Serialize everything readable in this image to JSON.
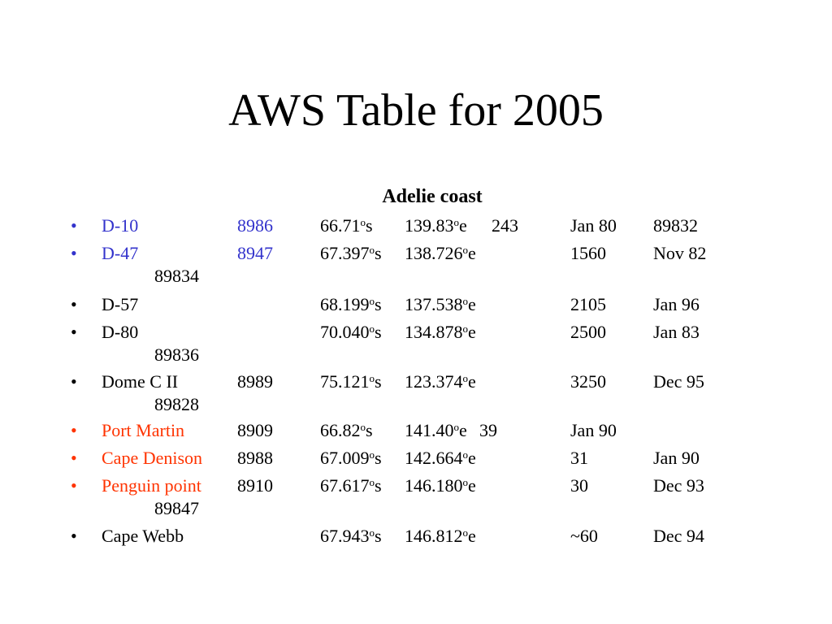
{
  "title": "AWS Table for 2005",
  "subtitle": "Adelie coast",
  "degree_mark": "o",
  "colors": {
    "blue": "#3333cc",
    "red": "#ff3300",
    "black": "#000000"
  },
  "rows": [
    {
      "color": "blue",
      "bullet": "•",
      "name": "D-10",
      "id": "8986",
      "lat": "66.71",
      "lat_dir": "s",
      "lon": "139.83",
      "lon_dir": "e",
      "elev": "243",
      "date": "Jan 80",
      "wmo": "89832"
    },
    {
      "color": "blue",
      "bullet": "•",
      "name": "D-47",
      "id": "8947",
      "lat": "67.397",
      "lat_dir": "s",
      "lon": "138.726",
      "lon_dir": "e",
      "elev": "1560",
      "date": "Nov 82",
      "wmo": "89834"
    },
    {
      "color": "black",
      "bullet": "•",
      "name": "D-57",
      "id": "",
      "lat": "68.199",
      "lat_dir": "s",
      "lon": "137.538",
      "lon_dir": "e",
      "elev": "2105",
      "date": "Jan 96",
      "wmo": ""
    },
    {
      "color": "black",
      "bullet": "•",
      "name": "D-80",
      "id": "",
      "lat": "70.040",
      "lat_dir": "s",
      "lon": "134.878",
      "lon_dir": "e",
      "elev": "2500",
      "date": "Jan 83",
      "wmo": "89836"
    },
    {
      "color": "black",
      "bullet": "•",
      "name": "Dome C II",
      "id": "8989",
      "lat": "75.121",
      "lat_dir": "s",
      "lon": "123.374",
      "lon_dir": "e",
      "elev": "3250",
      "date": "Dec 95",
      "wmo": "89828"
    },
    {
      "color": "red",
      "bullet": "•",
      "name": "Port Martin",
      "id": "8909",
      "lat": "66.82",
      "lat_dir": "s",
      "lon": "141.40",
      "lon_dir": "e",
      "elev": "39",
      "date": "Jan 90",
      "wmo": ""
    },
    {
      "color": "red",
      "bullet": "•",
      "name": "Cape Denison",
      "id": "8988",
      "lat": "67.009",
      "lat_dir": "s",
      "lon": "142.664",
      "lon_dir": "e",
      "elev": "31",
      "date": "Jan 90",
      "wmo": ""
    },
    {
      "color": "red",
      "bullet": "•",
      "name": "Penguin point",
      "id": "8910",
      "lat": "67.617",
      "lat_dir": "s",
      "lon": "146.180",
      "lon_dir": "e",
      "elev": "30",
      "date": "Dec 93",
      "wmo": "89847"
    },
    {
      "color": "black",
      "bullet": "•",
      "name": "Cape Webb",
      "id": "",
      "lat": "67.943",
      "lat_dir": "s",
      "lon": "146.812",
      "lon_dir": "e",
      "elev": "~60",
      "date": "Dec 94",
      "wmo": ""
    }
  ]
}
